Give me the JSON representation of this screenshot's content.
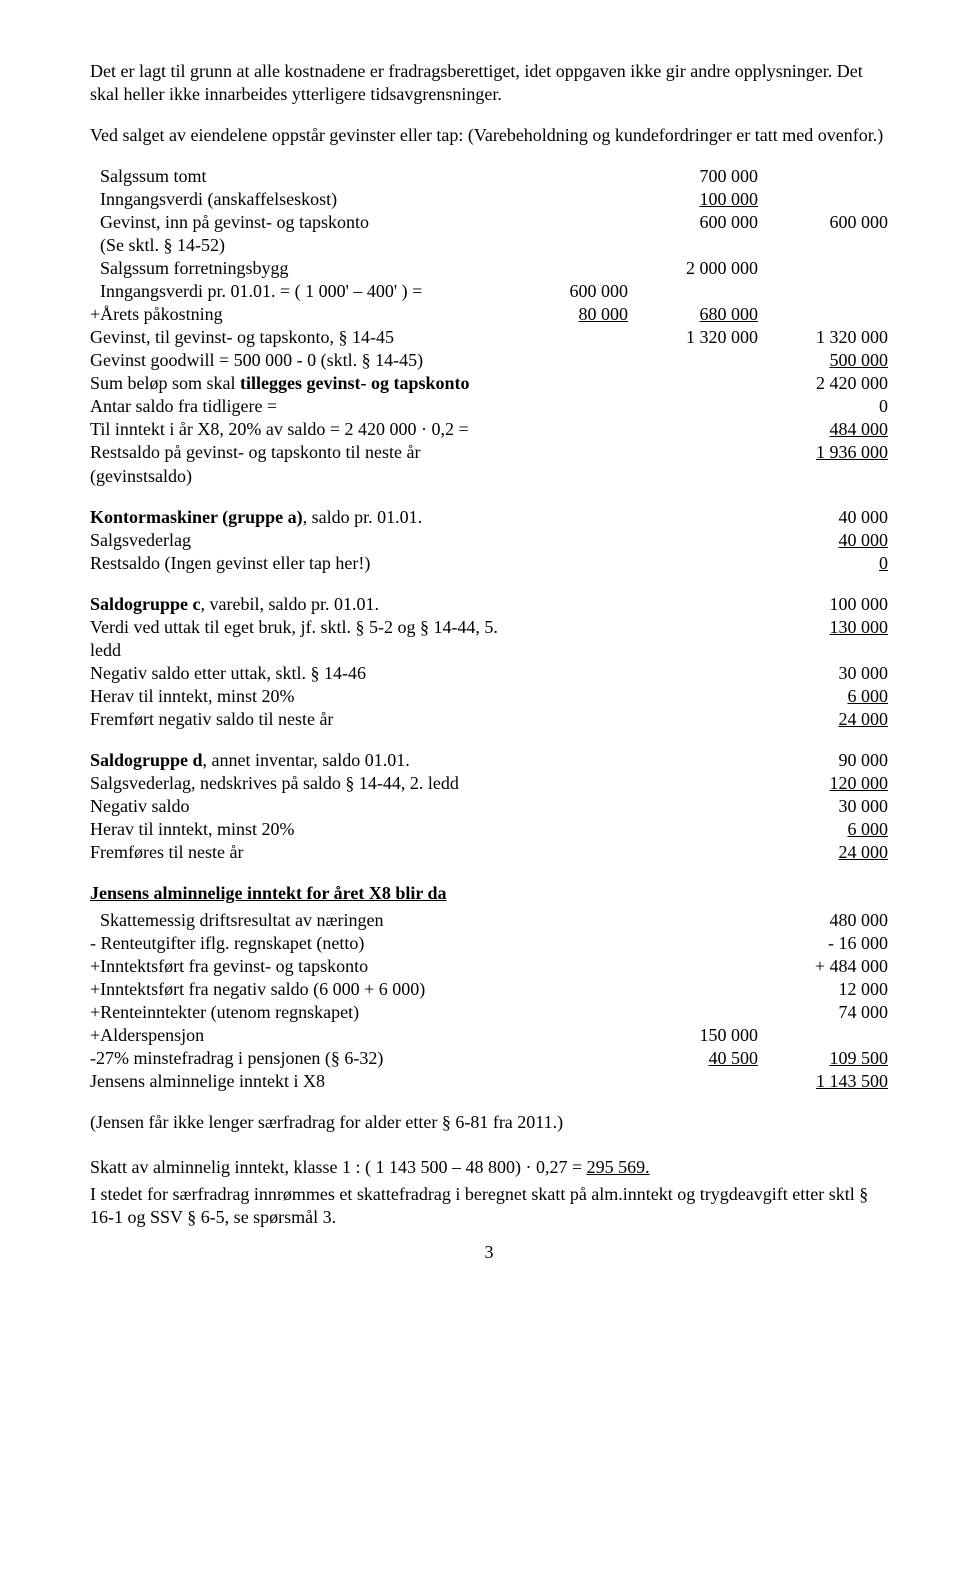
{
  "para1": "Det er lagt til grunn at alle kostnadene er fradragsberettiget, idet oppgaven ikke gir andre opplysninger. Det skal heller ikke innarbeides ytterligere tidsavgrensninger.",
  "para2": "Ved salget av eiendelene oppstår gevinster eller tap: (Varebeholdning og kundefordringer er tatt med ovenfor.)",
  "r1": {
    "label": "Salgssum tomt",
    "c2": "700 000"
  },
  "r2": {
    "label": "Inngangsverdi (anskaffelseskost)",
    "c2": "100 000"
  },
  "r3": {
    "label": "Gevinst, inn på gevinst- og tapskonto",
    "c2": "600 000",
    "c3": "600 000"
  },
  "r4": {
    "label": "(Se sktl. § 14-52)"
  },
  "r5": {
    "label": "Salgssum forretningsbygg",
    "c2": "2 000 000"
  },
  "r6": {
    "label": "Inngangsverdi pr. 01.01. = ( 1 000' – 400' ) =",
    "c1": "600 000"
  },
  "r7": {
    "label": "+Årets påkostning",
    "c1": "80 000",
    "c2": "680 000",
    "u1": true,
    "u2": true
  },
  "r8": {
    "label": "Gevinst, til gevinst- og tapskonto, § 14-45",
    "c2": "1 320 000",
    "c3": "1 320 000"
  },
  "r9": {
    "label": "Gevinst goodwill = 500 000 - 0 (sktl. § 14-45)",
    "c3": "500 000",
    "u3": true
  },
  "r10": {
    "label_pre": "Sum beløp som skal ",
    "label_bold": "tillegges gevinst- og tapskonto",
    "c3": "2 420 000"
  },
  "r11": {
    "label": "Antar saldo fra tidligere =",
    "c3": "0"
  },
  "r12": {
    "label": "Til inntekt i år X8, 20% av saldo = 2 420 000 · 0,2 =",
    "c3": "484 000",
    "u3": true
  },
  "r13": {
    "label": "Restsaldo på gevinst- og tapskonto til neste år (gevinstsaldo)",
    "c3": "1 936 000",
    "u3": true
  },
  "r14": {
    "label_bold": "Kontormaskiner (gruppe a)",
    "label_post": ", saldo pr. 01.01.",
    "c3": "40 000"
  },
  "r15": {
    "label": "Salgsvederlag",
    "c3": "40 000",
    "u3": true
  },
  "r16": {
    "label": "Restsaldo  (Ingen gevinst eller tap her!)",
    "c3": "0",
    "u3": true
  },
  "r17": {
    "label_bold": "Saldogruppe c",
    "label_post": ", varebil, saldo pr. 01.01.",
    "c3": "100 000"
  },
  "r18": {
    "label": "Verdi ved uttak til eget bruk,  jf. sktl. § 5-2 og  § 14-44,  5. ledd",
    "c3": "130 000",
    "u3": true
  },
  "r19": {
    "label": "Negativ saldo etter uttak, sktl. § 14-46",
    "c3": "30 000"
  },
  "r20": {
    "label": "Herav til inntekt, minst 20%",
    "c3": "6 000",
    "u3": true
  },
  "r21": {
    "label": "Fremført negativ saldo til neste år",
    "c3": "24 000",
    "u3": true
  },
  "r22": {
    "label_bold": "Saldogruppe d",
    "label_post": ", annet inventar, saldo 01.01.",
    "c3": "90 000"
  },
  "r23": {
    "label": "Salgsvederlag, nedskrives på saldo § 14-44, 2. ledd",
    "c3": "120 000",
    "u3": true
  },
  "r24": {
    "label": "Negativ saldo",
    "c3": "30 000"
  },
  "r25": {
    "label": "Herav til inntekt, minst 20%",
    "c3": "6 000",
    "u3": true
  },
  "r26": {
    "label": "Fremføres til neste år",
    "c3": "24 000",
    "u3": true
  },
  "heading_income": "Jensens alminnelige inntekt for året X8 blir da",
  "r27": {
    "label": "Skattemessig driftsresultat av næringen",
    "c3": "480 000"
  },
  "r28": {
    "label": "- Renteutgifter iflg. regnskapet (netto)",
    "c3": "- 16 000"
  },
  "r29": {
    "label": "+Inntektsført fra gevinst- og tapskonto",
    "c3": "+ 484 000"
  },
  "r30": {
    "label": "+Inntektsført fra negativ saldo (6 000 + 6 000)",
    "c3": "12 000"
  },
  "r31": {
    "label": "+Renteinntekter (utenom regnskapet)",
    "c3": "74 000"
  },
  "r32": {
    "label": "+Alderspensjon",
    "c2": "150 000"
  },
  "r33": {
    "label": "-27% minstefradrag i pensjonen (§ 6-32)",
    "c2": "40 500",
    "c3": "109 500",
    "u2": true,
    "u3": true
  },
  "r34": {
    "label": " Jensens alminnelige inntekt i X8",
    "c3": "1 143 500",
    "u3": true
  },
  "para3": "(Jensen får ikke lenger særfradrag for alder etter § 6-81 fra 2011.)",
  "para4_pre": "Skatt av alminnelig inntekt, klasse 1 :  ( 1 143 500 – 48 800) · 0,27 = ",
  "para4_u": "295 569.",
  "para5": "I stedet for særfradrag innrømmes et skattefradrag i beregnet skatt på alm.inntekt og trygdeavgift etter sktl § 16-1 og SSV § 6-5, se spørsmål 3.",
  "pagenum": "3"
}
